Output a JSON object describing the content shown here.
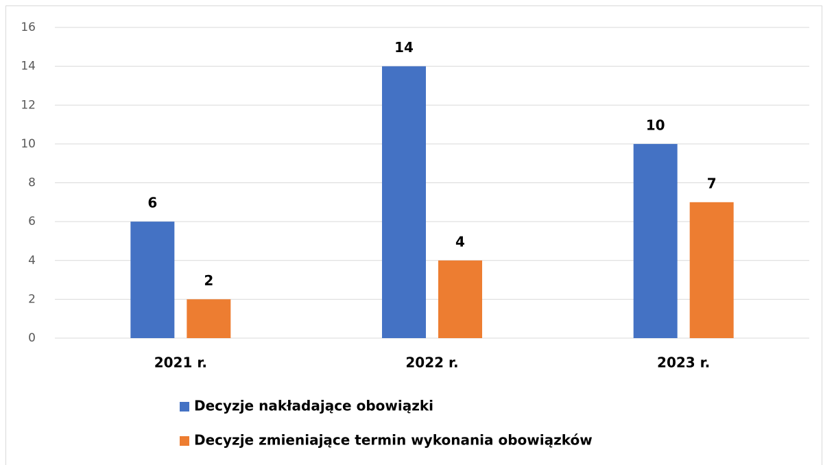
{
  "chart_data": {
    "type": "bar",
    "categories": [
      "2021 r.",
      "2022 r.",
      "2023 r."
    ],
    "series": [
      {
        "name": "Decyzje nakładające obowiązki",
        "color": "#4472c4",
        "values": [
          6,
          14,
          10
        ]
      },
      {
        "name": "Decyzje zmieniające termin wykonania obowiązków",
        "color": "#ed7d31",
        "values": [
          2,
          4,
          7
        ]
      }
    ],
    "ylim": [
      0,
      16
    ],
    "yticks": [
      0,
      2,
      4,
      6,
      8,
      10,
      12,
      14,
      16
    ],
    "grid": true,
    "legend": "bottom"
  }
}
